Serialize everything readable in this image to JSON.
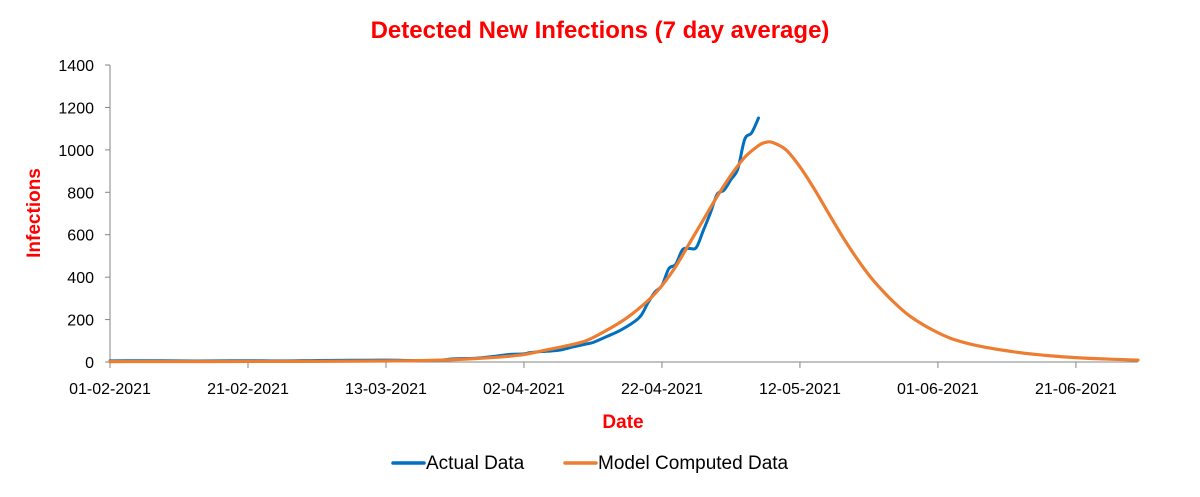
{
  "chart_data": {
    "type": "line",
    "title": "Detected New Infections (7 day average)",
    "xlabel": "Date",
    "ylabel": "Infections",
    "x_range": [
      "2021-02-01",
      "2021-06-30"
    ],
    "ylim": [
      0,
      1400
    ],
    "y_ticks": [
      0,
      200,
      400,
      600,
      800,
      1000,
      1200,
      1400
    ],
    "x_ticks": [
      {
        "date": "2021-02-01",
        "label": "01-02-2021"
      },
      {
        "date": "2021-02-21",
        "label": "21-02-2021"
      },
      {
        "date": "2021-03-13",
        "label": "13-03-2021"
      },
      {
        "date": "2021-04-02",
        "label": "02-04-2021"
      },
      {
        "date": "2021-04-22",
        "label": "22-04-2021"
      },
      {
        "date": "2021-05-12",
        "label": "12-05-2021"
      },
      {
        "date": "2021-06-01",
        "label": "01-06-2021"
      },
      {
        "date": "2021-06-21",
        "label": "21-06-2021"
      }
    ],
    "grid": false,
    "legend_position": "bottom",
    "series": [
      {
        "name": "Actual Data",
        "color": "#0070c0",
        "points": [
          [
            "2021-02-01",
            5
          ],
          [
            "2021-02-06",
            6
          ],
          [
            "2021-02-11",
            5
          ],
          [
            "2021-02-16",
            5
          ],
          [
            "2021-02-21",
            6
          ],
          [
            "2021-02-26",
            5
          ],
          [
            "2021-03-03",
            7
          ],
          [
            "2021-03-08",
            8
          ],
          [
            "2021-03-13",
            9
          ],
          [
            "2021-03-16",
            7
          ],
          [
            "2021-03-20",
            7
          ],
          [
            "2021-03-23",
            15
          ],
          [
            "2021-03-26",
            18
          ],
          [
            "2021-03-29",
            28
          ],
          [
            "2021-03-31",
            36
          ],
          [
            "2021-04-02",
            38
          ],
          [
            "2021-04-03",
            45
          ],
          [
            "2021-04-05",
            50
          ],
          [
            "2021-04-07",
            55
          ],
          [
            "2021-04-09",
            70
          ],
          [
            "2021-04-11",
            85
          ],
          [
            "2021-04-12",
            92
          ],
          [
            "2021-04-14",
            120
          ],
          [
            "2021-04-16",
            150
          ],
          [
            "2021-04-18",
            190
          ],
          [
            "2021-04-19",
            220
          ],
          [
            "2021-04-20",
            280
          ],
          [
            "2021-04-21",
            330
          ],
          [
            "2021-04-22",
            360
          ],
          [
            "2021-04-23",
            440
          ],
          [
            "2021-04-24",
            460
          ],
          [
            "2021-04-25",
            530
          ],
          [
            "2021-04-26",
            535
          ],
          [
            "2021-04-27",
            540
          ],
          [
            "2021-04-28",
            620
          ],
          [
            "2021-04-29",
            700
          ],
          [
            "2021-04-30",
            790
          ],
          [
            "2021-05-01",
            810
          ],
          [
            "2021-05-02",
            860
          ],
          [
            "2021-05-03",
            910
          ],
          [
            "2021-05-04",
            1050
          ],
          [
            "2021-05-05",
            1080
          ],
          [
            "2021-05-06",
            1150
          ]
        ]
      },
      {
        "name": "Model Computed Data",
        "color": "#ed7d31",
        "points": [
          [
            "2021-02-01",
            2
          ],
          [
            "2021-03-01",
            3
          ],
          [
            "2021-03-15",
            5
          ],
          [
            "2021-03-22",
            10
          ],
          [
            "2021-03-29",
            22
          ],
          [
            "2021-04-02",
            35
          ],
          [
            "2021-04-05",
            55
          ],
          [
            "2021-04-08",
            75
          ],
          [
            "2021-04-11",
            100
          ],
          [
            "2021-04-14",
            150
          ],
          [
            "2021-04-17",
            210
          ],
          [
            "2021-04-20",
            290
          ],
          [
            "2021-04-22",
            360
          ],
          [
            "2021-04-24",
            450
          ],
          [
            "2021-04-26",
            560
          ],
          [
            "2021-04-28",
            670
          ],
          [
            "2021-04-30",
            780
          ],
          [
            "2021-05-02",
            880
          ],
          [
            "2021-05-04",
            965
          ],
          [
            "2021-05-06",
            1020
          ],
          [
            "2021-05-07",
            1035
          ],
          [
            "2021-05-08",
            1035
          ],
          [
            "2021-05-10",
            1000
          ],
          [
            "2021-05-12",
            920
          ],
          [
            "2021-05-14",
            820
          ],
          [
            "2021-05-16",
            710
          ],
          [
            "2021-05-18",
            600
          ],
          [
            "2021-05-20",
            500
          ],
          [
            "2021-05-22",
            410
          ],
          [
            "2021-05-24",
            335
          ],
          [
            "2021-05-26",
            270
          ],
          [
            "2021-05-28",
            215
          ],
          [
            "2021-05-31",
            155
          ],
          [
            "2021-06-03",
            110
          ],
          [
            "2021-06-07",
            75
          ],
          [
            "2021-06-12",
            48
          ],
          [
            "2021-06-17",
            30
          ],
          [
            "2021-06-22",
            19
          ],
          [
            "2021-06-26",
            13
          ],
          [
            "2021-06-30",
            9
          ]
        ]
      }
    ]
  }
}
